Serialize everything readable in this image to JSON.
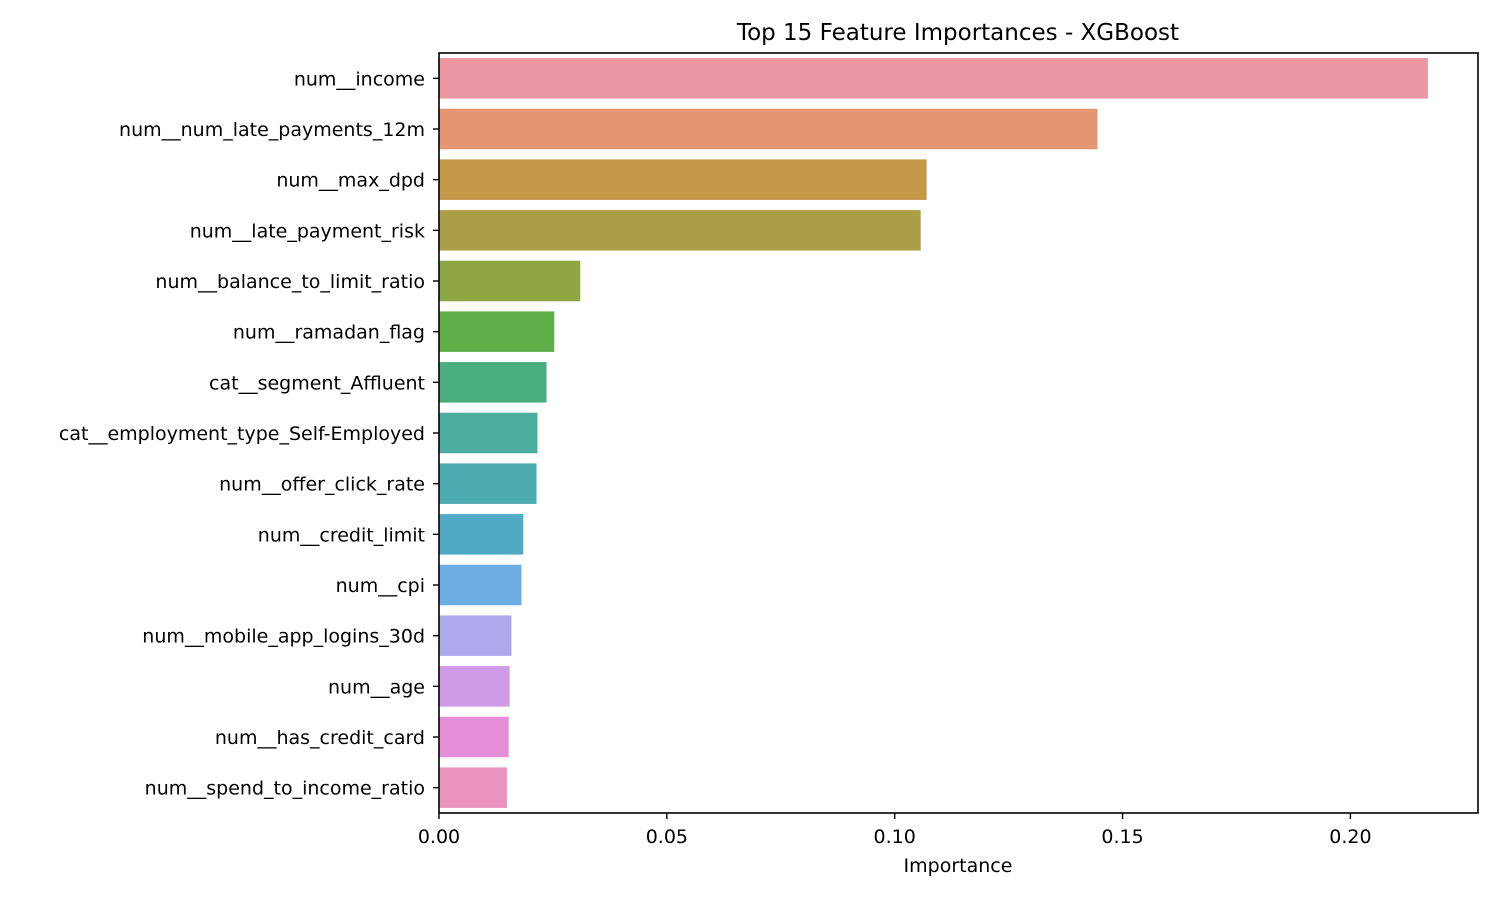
{
  "chart_data": {
    "type": "bar",
    "orientation": "horizontal",
    "title": "Top 15 Feature Importances - XGBoost",
    "xlabel": "Importance",
    "ylabel": "",
    "xlim": [
      0,
      0.228
    ],
    "xticks": [
      {
        "value": 0.0,
        "label": "0.00"
      },
      {
        "value": 0.05,
        "label": "0.05"
      },
      {
        "value": 0.1,
        "label": "0.10"
      },
      {
        "value": 0.15,
        "label": "0.15"
      },
      {
        "value": 0.2,
        "label": "0.20"
      }
    ],
    "grid": false,
    "legend": "none",
    "categories": [
      "num__income",
      "num__num_late_payments_12m",
      "num__max_dpd",
      "num__late_payment_risk",
      "num__balance_to_limit_ratio",
      "num__ramadan_flag",
      "cat__segment_Affluent",
      "cat__employment_type_Self-Employed",
      "num__offer_click_rate",
      "num__credit_limit",
      "num__cpi",
      "num__mobile_app_logins_30d",
      "num__age",
      "num__has_credit_card",
      "num__spend_to_income_ratio"
    ],
    "values": [
      0.217,
      0.1445,
      0.107,
      0.1057,
      0.031,
      0.0253,
      0.0236,
      0.0216,
      0.0214,
      0.0185,
      0.0181,
      0.0159,
      0.0155,
      0.0153,
      0.0149
    ],
    "colors": [
      "#ea96a3",
      "#e49572",
      "#c59848",
      "#aa9e46",
      "#90a544",
      "#60ae48",
      "#48ae7f",
      "#4aad9d",
      "#4cabb1",
      "#50aac6",
      "#6cacE3",
      "#afa9ec",
      "#d09be6",
      "#e78ed9",
      "#e993bd"
    ]
  }
}
